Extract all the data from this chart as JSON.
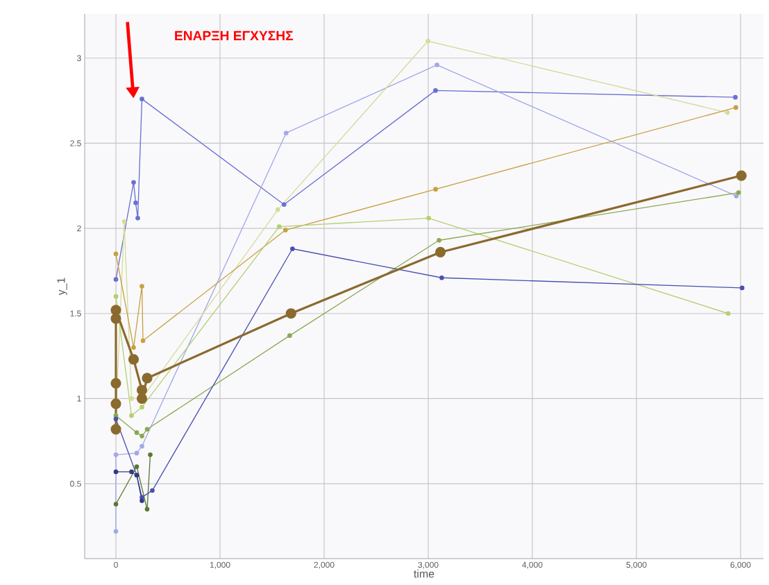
{
  "chart_data": {
    "type": "line",
    "xlabel": "time",
    "ylabel": "y_1",
    "annotations": [
      "ΕΝΑΡΞΗ ΕΓΧΥΣΗΣ"
    ],
    "xlim": [
      -300,
      6220
    ],
    "ylim": [
      0.06,
      3.26
    ],
    "xticks": [
      0,
      {
        "value": 1000,
        "label": "1,000"
      },
      {
        "value": 2000,
        "label": "2,000"
      },
      {
        "value": 3000,
        "label": "3,000"
      },
      {
        "value": 4000,
        "label": "4,000"
      },
      {
        "value": 5000,
        "label": "5,000"
      },
      {
        "value": 6000,
        "label": "6,000"
      }
    ],
    "yticks": [
      0.5,
      1,
      1.5,
      2,
      2.5,
      3
    ],
    "grid": true,
    "marker": "circle",
    "line_style": "solid",
    "series": [
      {
        "color": "#6a70d0",
        "x": [
          0,
          170,
          190,
          210,
          250,
          1615,
          3070,
          5950
        ],
        "values": [
          1.7,
          2.27,
          2.15,
          2.06,
          2.76,
          2.14,
          2.81,
          2.77
        ]
      },
      {
        "color": "#a2a8e8",
        "x": [
          0,
          0,
          200,
          250,
          1635,
          3084,
          5960
        ],
        "values": [
          0.22,
          0.67,
          0.68,
          0.72,
          2.56,
          2.96,
          2.19
        ]
      },
      {
        "color": "#d4dc9a",
        "x": [
          0,
          80,
          150,
          250,
          1555,
          2997,
          5875
        ],
        "values": [
          0.9,
          2.04,
          1.0,
          1.0,
          2.11,
          3.1,
          2.68
        ]
      },
      {
        "color": "#c9a040",
        "x": [
          0,
          170,
          250,
          260,
          1629,
          3071,
          5955
        ],
        "values": [
          1.85,
          1.3,
          1.66,
          1.34,
          1.99,
          2.23,
          2.71
        ]
      },
      {
        "color": "#b4d070",
        "x": [
          0,
          150,
          250,
          1569,
          3004,
          5881
        ],
        "values": [
          1.6,
          0.9,
          0.95,
          2.01,
          2.06,
          1.5
        ]
      },
      {
        "color": "#5a7a30",
        "x": [
          0,
          200,
          300,
          330
        ],
        "values": [
          0.38,
          0.6,
          0.35,
          0.67
        ]
      },
      {
        "color": "#8aa850",
        "x": [
          0,
          200,
          250,
          300,
          1669,
          3104,
          5981
        ],
        "values": [
          0.9,
          0.8,
          0.78,
          0.82,
          1.37,
          1.93,
          2.21
        ]
      },
      {
        "color": "#4a50b0",
        "x": [
          0,
          200,
          250,
          350,
          1696,
          3130,
          6015
        ],
        "values": [
          0.88,
          0.55,
          0.42,
          0.46,
          1.88,
          1.71,
          1.65
        ]
      },
      {
        "color": "#353a80",
        "x": [
          0,
          150,
          200,
          250
        ],
        "values": [
          0.57,
          0.57,
          0.55,
          0.4
        ]
      },
      {
        "color": "#8b6a2e",
        "x": [
          0,
          0,
          0,
          0,
          0,
          170,
          250,
          250,
          300,
          1682,
          3117,
          6008
        ],
        "values": [
          0.82,
          0.97,
          1.09,
          1.47,
          1.52,
          1.23,
          1.05,
          1.0,
          1.12,
          1.5,
          1.86,
          2.31
        ]
      }
    ]
  }
}
